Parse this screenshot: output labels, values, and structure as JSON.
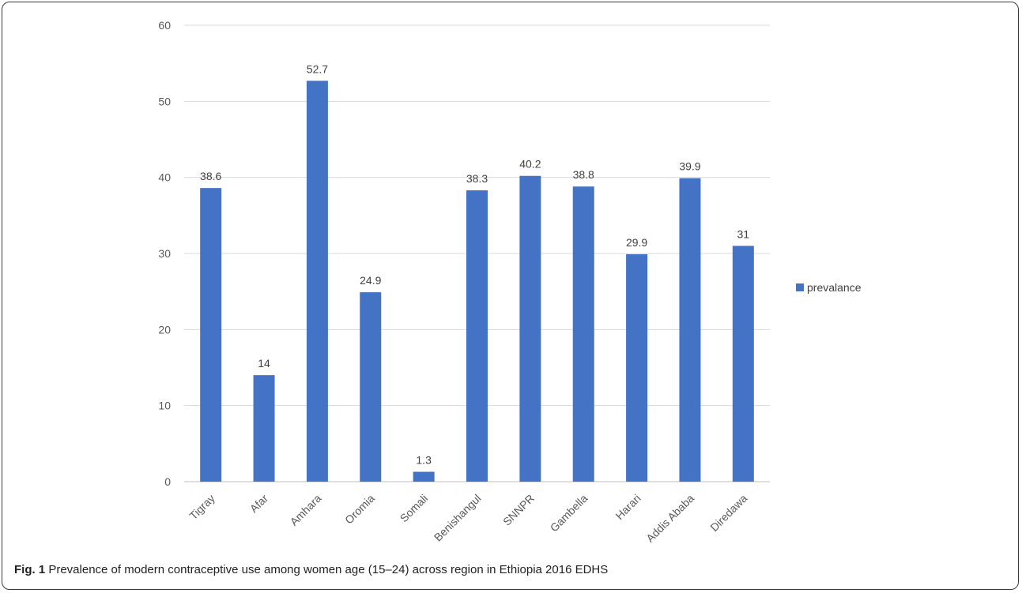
{
  "chart_data": {
    "type": "bar",
    "categories": [
      "Tigray",
      "Afar",
      "Amhara",
      "Oromia",
      "Somali",
      "Benishangul",
      "SNNPR",
      "Gambella",
      "Harari",
      "Addis Ababa",
      "Diredawa"
    ],
    "series": [
      {
        "name": "prevalance",
        "values": [
          38.6,
          14,
          52.7,
          24.9,
          1.3,
          38.3,
          40.2,
          38.8,
          29.9,
          39.9,
          31
        ],
        "color": "#4472c4"
      }
    ],
    "data_labels": [
      "38.6",
      "14",
      "52.7",
      "24.9",
      "1.3",
      "38.3",
      "40.2",
      "38.8",
      "29.9",
      "39.9",
      "31"
    ],
    "yticks": [
      "0",
      "10",
      "20",
      "30",
      "40",
      "50",
      "60"
    ],
    "ylim": [
      0,
      60
    ],
    "grid": true,
    "legend_position": "right",
    "title": "",
    "xlabel": "",
    "ylabel": ""
  },
  "caption": {
    "label": "Fig. 1",
    "text": "Prevalence of modern contraceptive use among women age (15–24) across region in Ethiopia 2016 EDHS"
  }
}
